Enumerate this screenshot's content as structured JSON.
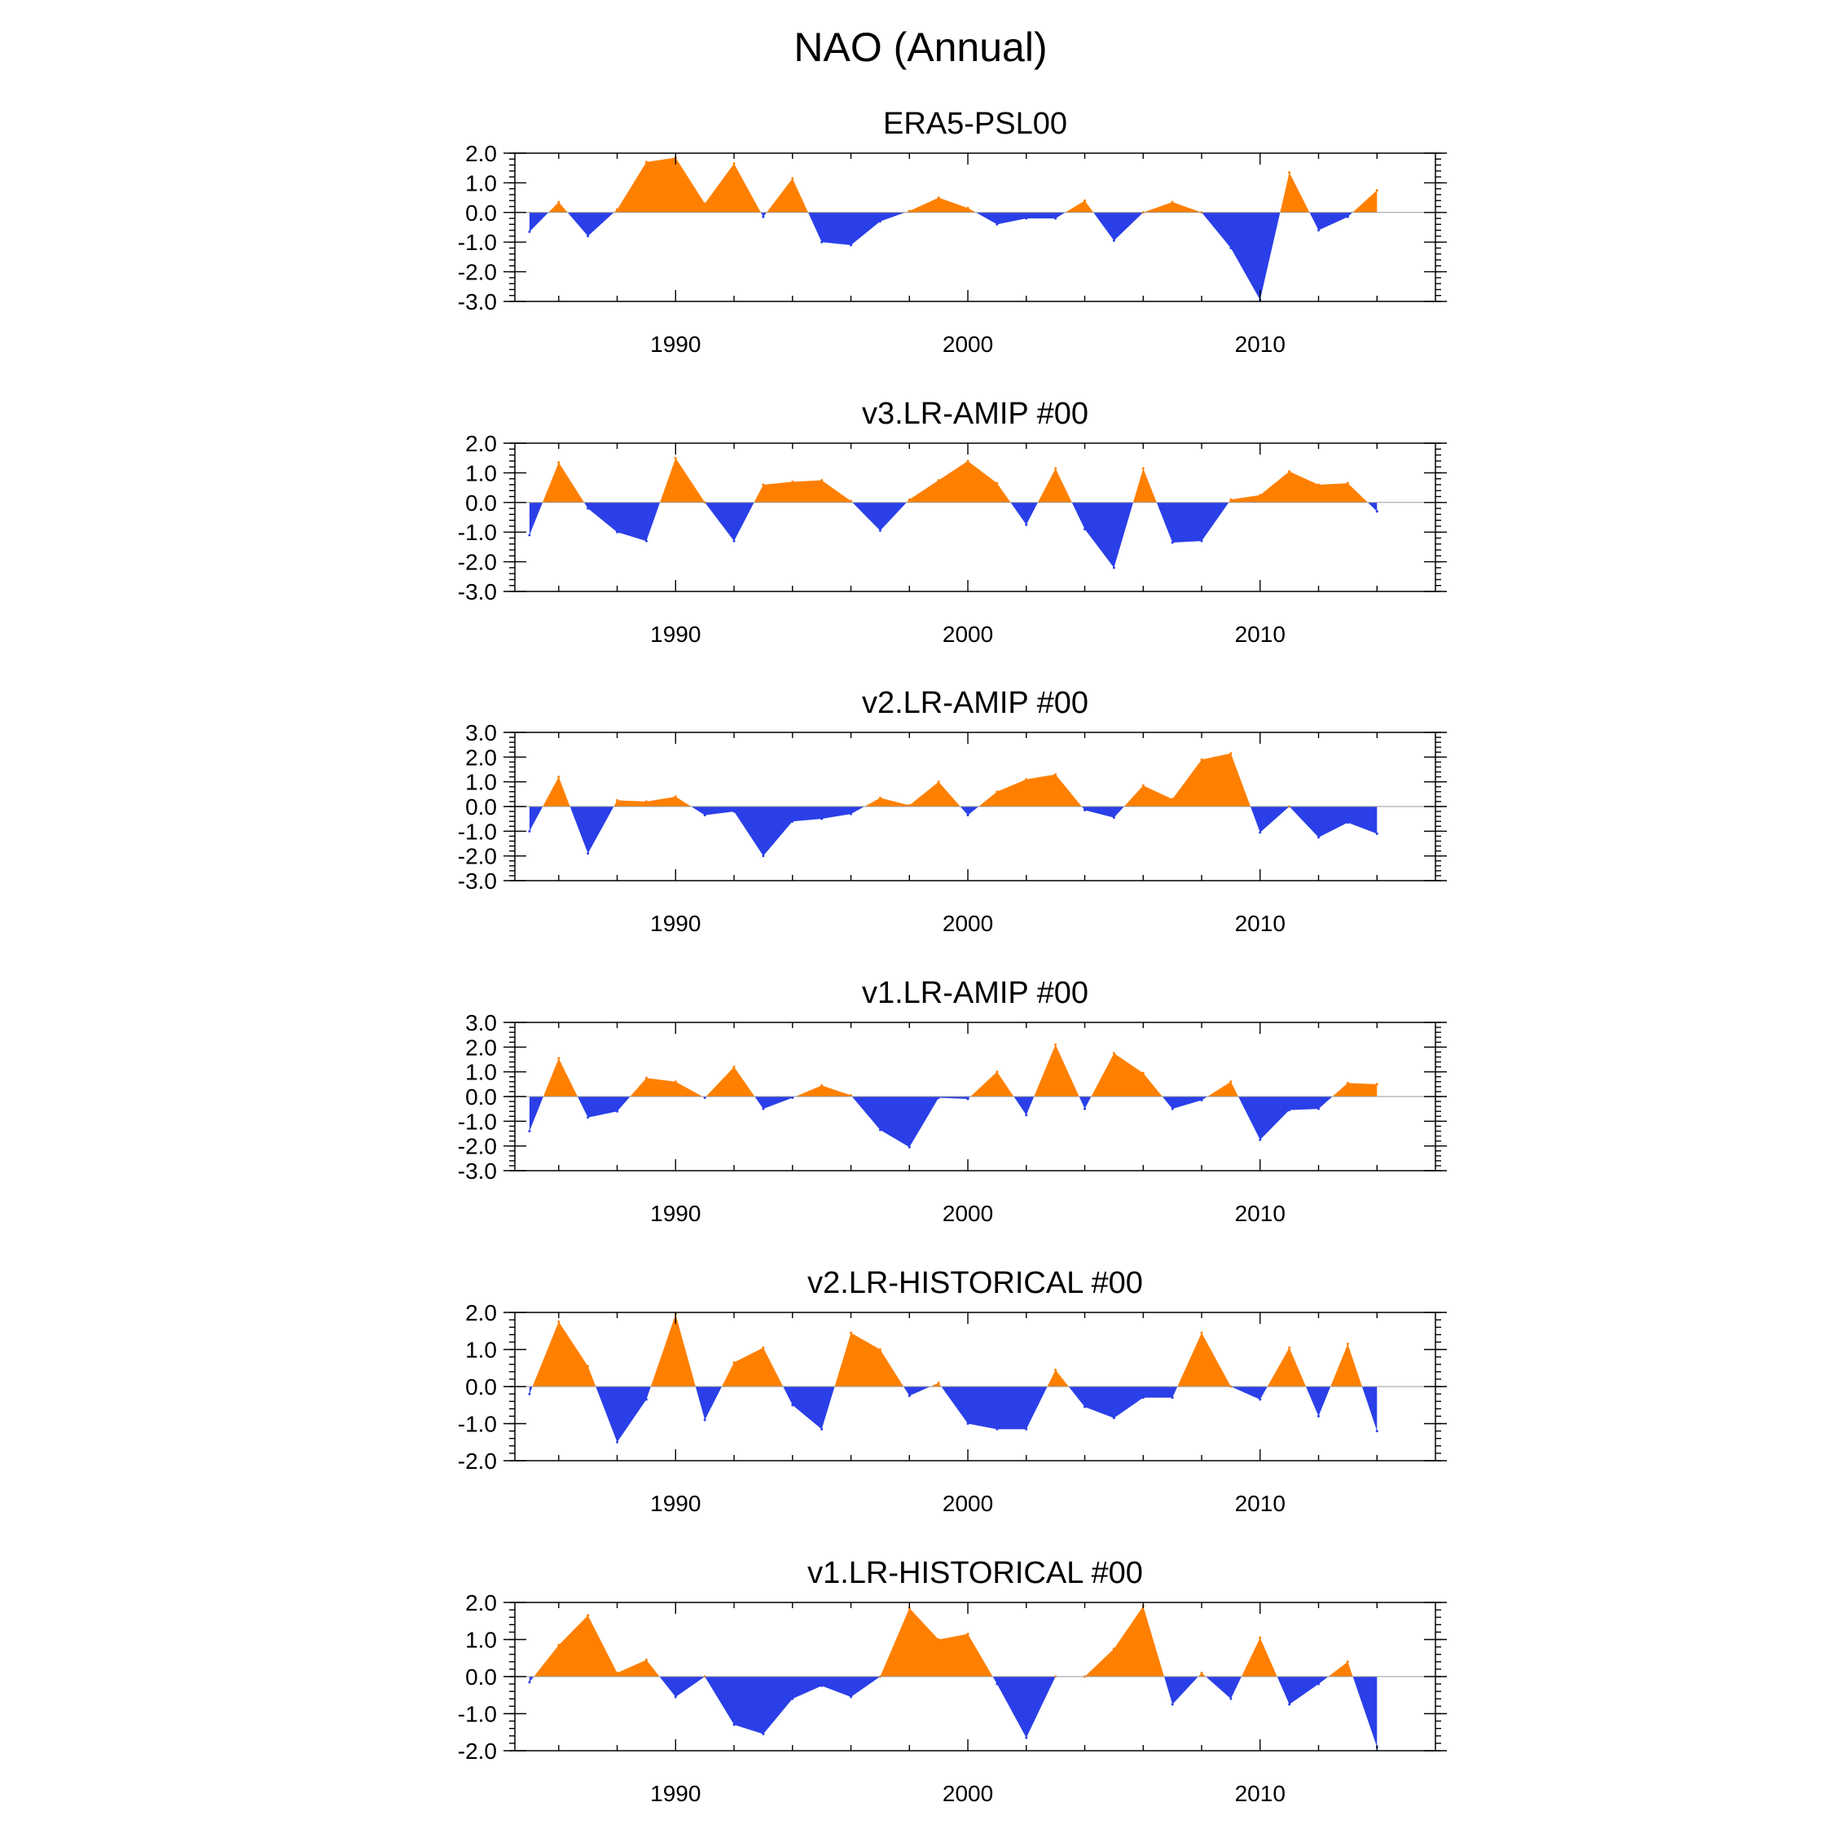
{
  "page_title": "NAO (Annual)",
  "colors": {
    "positive": "#ff8000",
    "negative": "#2a3fe8",
    "zero_line": "#999999",
    "axis": "#000000"
  },
  "chart_data": [
    {
      "type": "area",
      "title": "ERA5-PSL00",
      "xlabel": "",
      "ylabel": "",
      "xlim": [
        1984.5,
        2016
      ],
      "ylim": [
        -3,
        2
      ],
      "yticks": [
        "2.0",
        "1.0",
        "0.0",
        "-1.0",
        "-2.0",
        "-3.0"
      ],
      "xticks": [
        "1990",
        "2000",
        "2010"
      ],
      "x": [
        1985,
        1986,
        1987,
        1988,
        1989,
        1990,
        1991,
        1992,
        1993,
        1994,
        1995,
        1996,
        1997,
        1998,
        1999,
        2000,
        2001,
        2002,
        2003,
        2004,
        2005,
        2006,
        2007,
        2008,
        2009,
        2010,
        2011,
        2012,
        2013,
        2014
      ],
      "values": [
        -0.65,
        0.35,
        -0.8,
        0.1,
        1.7,
        1.85,
        0.3,
        1.65,
        -0.15,
        1.15,
        -1.0,
        -1.1,
        -0.3,
        0.05,
        0.5,
        0.15,
        -0.4,
        -0.2,
        -0.2,
        0.4,
        -0.95,
        0.0,
        0.35,
        0.0,
        -1.2,
        -2.95,
        1.35,
        -0.6,
        -0.15,
        0.75
      ]
    },
    {
      "type": "area",
      "title": "v3.LR-AMIP  #00",
      "xlabel": "",
      "ylabel": "",
      "xlim": [
        1984.5,
        2016
      ],
      "ylim": [
        -3,
        2
      ],
      "yticks": [
        "2.0",
        "1.0",
        "0.0",
        "-1.0",
        "-2.0",
        "-3.0"
      ],
      "xticks": [
        "1990",
        "2000",
        "2010"
      ],
      "x": [
        1985,
        1986,
        1987,
        1988,
        1989,
        1990,
        1991,
        1992,
        1993,
        1994,
        1995,
        1996,
        1997,
        1998,
        1999,
        2000,
        2001,
        2002,
        2003,
        2004,
        2005,
        2006,
        2007,
        2008,
        2009,
        2010,
        2011,
        2012,
        2013,
        2014
      ],
      "values": [
        -1.1,
        1.35,
        -0.2,
        -1.0,
        -1.3,
        1.5,
        0.0,
        -1.3,
        0.6,
        0.7,
        0.75,
        0.05,
        -0.95,
        0.1,
        0.75,
        1.4,
        0.65,
        -0.75,
        1.15,
        -0.9,
        -2.2,
        1.15,
        -1.35,
        -1.3,
        0.1,
        0.25,
        1.05,
        0.6,
        0.65,
        -0.3
      ]
    },
    {
      "type": "area",
      "title": "v2.LR-AMIP  #00",
      "xlabel": "",
      "ylabel": "",
      "xlim": [
        1984.5,
        2016
      ],
      "ylim": [
        -3,
        3
      ],
      "yticks": [
        "3.0",
        "2.0",
        "1.0",
        "0.0",
        "-1.0",
        "-2.0",
        "-3.0"
      ],
      "xticks": [
        "1990",
        "2000",
        "2010"
      ],
      "x": [
        1985,
        1986,
        1987,
        1988,
        1989,
        1990,
        1991,
        1992,
        1993,
        1994,
        1995,
        1996,
        1997,
        1998,
        1999,
        2000,
        2001,
        2002,
        2003,
        2004,
        2005,
        2006,
        2007,
        2008,
        2009,
        2010,
        2011,
        2012,
        2013,
        2014
      ],
      "values": [
        -1.0,
        1.2,
        -1.9,
        0.25,
        0.2,
        0.4,
        -0.35,
        -0.2,
        -2.0,
        -0.6,
        -0.5,
        -0.3,
        0.35,
        0.05,
        1.0,
        -0.35,
        0.6,
        1.1,
        1.3,
        -0.15,
        -0.45,
        0.85,
        0.3,
        1.9,
        2.15,
        -1.05,
        0.0,
        -1.25,
        -0.65,
        -1.1
      ]
    },
    {
      "type": "area",
      "title": "v1.LR-AMIP  #00",
      "xlabel": "",
      "ylabel": "",
      "xlim": [
        1984.5,
        2016
      ],
      "ylim": [
        -3,
        3
      ],
      "yticks": [
        "3.0",
        "2.0",
        "1.0",
        "0.0",
        "-1.0",
        "-2.0",
        "-3.0"
      ],
      "xticks": [
        "1990",
        "2000",
        "2010"
      ],
      "x": [
        1985,
        1986,
        1987,
        1988,
        1989,
        1990,
        1991,
        1992,
        1993,
        1994,
        1995,
        1996,
        1997,
        1998,
        1999,
        2000,
        2001,
        2002,
        2003,
        2004,
        2005,
        2006,
        2007,
        2008,
        2009,
        2010,
        2011,
        2012,
        2013,
        2014
      ],
      "values": [
        -1.4,
        1.55,
        -0.85,
        -0.6,
        0.75,
        0.6,
        -0.05,
        1.2,
        -0.5,
        -0.05,
        0.45,
        0.05,
        -1.35,
        -2.05,
        -0.05,
        -0.1,
        1.0,
        -0.75,
        2.1,
        -0.5,
        1.75,
        0.95,
        -0.5,
        -0.15,
        0.6,
        -1.75,
        -0.55,
        -0.5,
        0.55,
        0.5
      ]
    },
    {
      "type": "area",
      "title": "v2.LR-HISTORICAL  #00",
      "xlabel": "",
      "ylabel": "",
      "xlim": [
        1984.5,
        2016
      ],
      "ylim": [
        -2,
        2
      ],
      "yticks": [
        "2.0",
        "1.0",
        "0.0",
        "-1.0",
        "-2.0"
      ],
      "xticks": [
        "1990",
        "2000",
        "2010"
      ],
      "x": [
        1985,
        1986,
        1987,
        1988,
        1989,
        1990,
        1991,
        1992,
        1993,
        1994,
        1995,
        1996,
        1997,
        1998,
        1999,
        2000,
        2001,
        2002,
        2003,
        2004,
        2005,
        2006,
        2007,
        2008,
        2009,
        2010,
        2011,
        2012,
        2013,
        2014
      ],
      "values": [
        -0.2,
        1.75,
        0.55,
        -1.5,
        -0.35,
        1.95,
        -0.9,
        0.65,
        1.05,
        -0.5,
        -1.15,
        1.45,
        1.0,
        -0.25,
        0.1,
        -1.0,
        -1.15,
        -1.15,
        0.45,
        -0.55,
        -0.85,
        -0.3,
        -0.3,
        1.45,
        0.0,
        -0.35,
        1.05,
        -0.8,
        1.15,
        -1.2
      ]
    },
    {
      "type": "area",
      "title": "v1.LR-HISTORICAL  #00",
      "xlabel": "",
      "ylabel": "",
      "xlim": [
        1984.5,
        2016
      ],
      "ylim": [
        -2,
        2
      ],
      "yticks": [
        "2.0",
        "1.0",
        "0.0",
        "-1.0",
        "-2.0"
      ],
      "xticks": [
        "1990",
        "2000",
        "2010"
      ],
      "x": [
        1985,
        1986,
        1987,
        1988,
        1989,
        1990,
        1991,
        1992,
        1993,
        1994,
        1995,
        1996,
        1997,
        1998,
        1999,
        2000,
        2001,
        2002,
        2003,
        2004,
        2005,
        2006,
        2007,
        2008,
        2009,
        2010,
        2011,
        2012,
        2013,
        2014
      ],
      "values": [
        -0.15,
        0.85,
        1.65,
        0.1,
        0.45,
        -0.55,
        0.0,
        -1.3,
        -1.55,
        -0.6,
        -0.25,
        -0.55,
        0.0,
        1.85,
        1.0,
        1.15,
        -0.2,
        -1.65,
        0.0,
        0.0,
        0.75,
        1.9,
        -0.75,
        0.1,
        -0.6,
        1.05,
        -0.75,
        -0.2,
        0.4,
        -1.9
      ]
    }
  ]
}
